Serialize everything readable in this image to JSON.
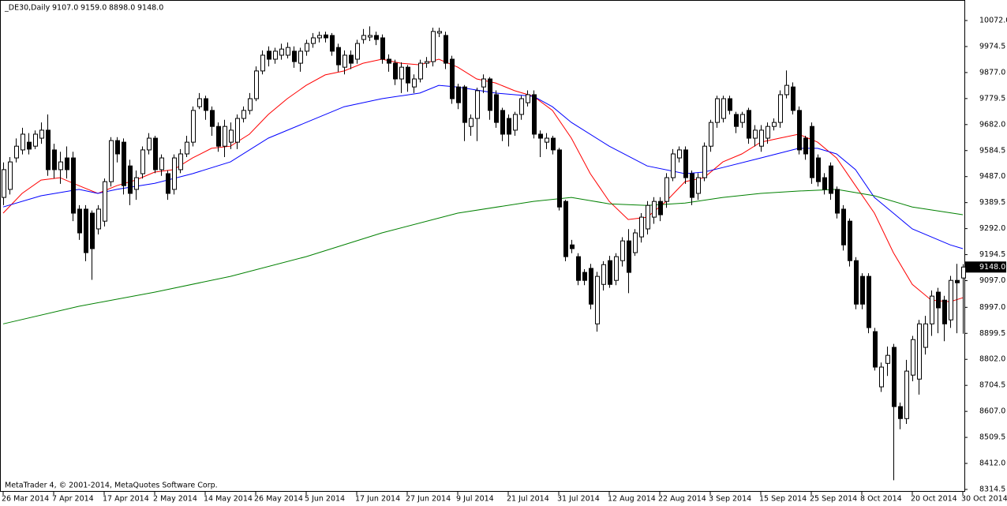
{
  "chart_data": {
    "type": "candlestick",
    "title": "_DE30,Daily",
    "last_labels": [
      "9107.0",
      "9159.0",
      "8898.0",
      "9148.0"
    ],
    "footer": "MetaTrader 4, © 2001-2014, MetaQuotes Software Corp.",
    "colors": {
      "up": "#ffffff",
      "down": "#000000",
      "wick": "#000000"
    },
    "xlim": [
      -0.5,
      152.25
    ],
    "ylim": [
      8308.6,
      10148.9
    ],
    "xticks": [
      {
        "value": 0,
        "label": "26 Mar 2014"
      },
      {
        "value": 8,
        "label": "7 Apr 2014"
      },
      {
        "value": 16,
        "label": "17 Apr 2014"
      },
      {
        "value": 24,
        "label": "2 May 2014"
      },
      {
        "value": 32,
        "label": "14 May 2014"
      },
      {
        "value": 40,
        "label": "26 May 2014"
      },
      {
        "value": 48,
        "label": "5 Jun 2014"
      },
      {
        "value": 56,
        "label": "17 Jun 2014"
      },
      {
        "value": 64,
        "label": "27 Jun 2014"
      },
      {
        "value": 72,
        "label": "9 Jul 2014"
      },
      {
        "value": 80,
        "label": "21 Jul 2014"
      },
      {
        "value": 88,
        "label": "31 Jul 2014"
      },
      {
        "value": 96,
        "label": "12 Aug 2014"
      },
      {
        "value": 104,
        "label": "22 Aug 2014"
      },
      {
        "value": 112,
        "label": "3 Sep 2014"
      },
      {
        "value": 120,
        "label": "15 Sep 2014"
      },
      {
        "value": 128,
        "label": "25 Sep 2014"
      },
      {
        "value": 136,
        "label": "8 Oct 2014"
      },
      {
        "value": 144,
        "label": "20 Oct 2014"
      },
      {
        "value": 152,
        "label": "30 Oct 2014"
      }
    ],
    "yticks": [
      {
        "value": 10072,
        "label": "10072.0"
      },
      {
        "value": 9974.5,
        "label": "9974.5"
      },
      {
        "value": 9877,
        "label": "9877.0"
      },
      {
        "value": 9779.5,
        "label": "9779.5"
      },
      {
        "value": 9682,
        "label": "9682.0"
      },
      {
        "value": 9584.5,
        "label": "9584.5"
      },
      {
        "value": 9487,
        "label": "9487.0"
      },
      {
        "value": 9389.5,
        "label": "9389.5"
      },
      {
        "value": 9292,
        "label": "9292.0"
      },
      {
        "value": 9194.5,
        "label": "9194.5"
      },
      {
        "value": 9097,
        "label": "9097.0"
      },
      {
        "value": 8997,
        "label": "8997.0"
      },
      {
        "value": 8899.5,
        "label": "8899.5"
      },
      {
        "value": 8802,
        "label": "8802.0"
      },
      {
        "value": 8704.5,
        "label": "8704.5"
      },
      {
        "value": 8607,
        "label": "8607.0"
      },
      {
        "value": 8509.5,
        "label": "8509.5"
      },
      {
        "value": 8412,
        "label": "8412.0"
      },
      {
        "value": 8314.5,
        "label": "8314.5"
      }
    ],
    "open": [
      9409,
      9439,
      9557,
      9587,
      9616,
      9601,
      9631,
      9661,
      9587,
      9513,
      9557,
      9557,
      9365,
      9365,
      9350,
      9291,
      9320,
      9468,
      9622,
      9616,
      9527,
      9439,
      9498,
      9587,
      9631,
      9513,
      9498,
      9439,
      9513,
      9572,
      9616,
      9749,
      9779,
      9735,
      9675,
      9601,
      9616,
      9616,
      9705,
      9735,
      9779,
      9883,
      9957,
      9927,
      9942,
      9942,
      9957,
      9912,
      9957,
      9986,
      10007,
      10018,
      10016,
      9971,
      9897,
      9942,
      9927,
      10001,
      10010,
      10016,
      10007,
      9927,
      9912,
      9853,
      9897,
      9823,
      9853,
      9912,
      9918,
      10025,
      10016,
      9927,
      9823,
      9823,
      9675,
      9705,
      9823,
      9853,
      9794,
      9735,
      9705,
      9661,
      9720,
      9764,
      9794,
      9646,
      9616,
      9631,
      9587,
      9394,
      9231,
      9187,
      9128,
      9143,
      8935,
      9083,
      9172,
      9098,
      9172,
      9246,
      9202,
      9261,
      9291,
      9335,
      9394,
      9394,
      9483,
      9557,
      9587,
      9498,
      9424,
      9483,
      9601,
      9690,
      9705,
      9779,
      9720,
      9690,
      9735,
      9631,
      9601,
      9631,
      9675,
      9690,
      9794,
      9823,
      9735,
      9631,
      9675,
      9557,
      9483,
      9527,
      9439,
      9365,
      9320,
      9172,
      9113,
      9113,
      8906,
      8699,
      8787,
      8847,
      8625,
      8580,
      8743,
      8728,
      8847,
      8935,
      9054,
      9024,
      8950,
      9098,
      9107
    ],
    "high": [
      9540,
      9560,
      9630,
      9670,
      9650,
      9660,
      9690,
      9720,
      9610,
      9580,
      9600,
      9580,
      9380,
      9380,
      9360,
      9380,
      9480,
      9635,
      9635,
      9630,
      9550,
      9510,
      9600,
      9650,
      9640,
      9570,
      9510,
      9570,
      9590,
      9640,
      9750,
      9800,
      9790,
      9750,
      9690,
      9700,
      9690,
      9720,
      9750,
      9800,
      9900,
      9960,
      9975,
      9970,
      9985,
      9990,
      9975,
      9970,
      10000,
      10025,
      10030,
      10030,
      10025,
      9985,
      9960,
      9960,
      10000,
      10040,
      10050,
      10030,
      10020,
      9945,
      9925,
      9915,
      9905,
      9870,
      9925,
      9935,
      10045,
      10045,
      10030,
      9940,
      9835,
      9830,
      9720,
      9820,
      9870,
      9860,
      9810,
      9745,
      9720,
      9730,
      9790,
      9810,
      9810,
      9660,
      9650,
      9640,
      9595,
      9400,
      9250,
      9200,
      9140,
      9160,
      9130,
      9170,
      9190,
      9200,
      9260,
      9290,
      9290,
      9350,
      9395,
      9410,
      9410,
      9500,
      9590,
      9600,
      9600,
      9510,
      9500,
      9615,
      9700,
      9790,
      9790,
      9790,
      9730,
      9730,
      9745,
      9680,
      9680,
      9690,
      9705,
      9810,
      9885,
      9840,
      9750,
      9640,
      9690,
      9570,
      9500,
      9540,
      9450,
      9380,
      9330,
      9185,
      9125,
      9125,
      8920,
      8790,
      8850,
      8860,
      8640,
      8800,
      8890,
      8950,
      8965,
      9060,
      9070,
      9040,
      9115,
      9160,
      9159
    ],
    "low": [
      9380,
      9420,
      9540,
      9570,
      9570,
      9590,
      9610,
      9490,
      9480,
      9460,
      9480,
      9320,
      9250,
      9170,
      9100,
      9270,
      9300,
      9450,
      9540,
      9420,
      9380,
      9400,
      9480,
      9570,
      9500,
      9490,
      9400,
      9420,
      9500,
      9560,
      9600,
      9740,
      9700,
      9640,
      9580,
      9560,
      9590,
      9590,
      9690,
      9720,
      9770,
      9870,
      9900,
      9910,
      9925,
      9930,
      9895,
      9880,
      9940,
      9970,
      9990,
      9990,
      9940,
      9880,
      9870,
      9890,
      9910,
      9985,
      9995,
      9980,
      9910,
      9880,
      9830,
      9800,
      9805,
      9800,
      9840,
      9895,
      9900,
      10010,
      9890,
      9760,
      9740,
      9620,
      9640,
      9620,
      9800,
      9700,
      9670,
      9620,
      9600,
      9640,
      9700,
      9750,
      9630,
      9560,
      9590,
      9570,
      9360,
      9170,
      9200,
      9080,
      9080,
      8990,
      8906,
      9060,
      9070,
      9080,
      9150,
      9050,
      9190,
      9240,
      9270,
      9310,
      9320,
      9370,
      9470,
      9540,
      9460,
      9380,
      9400,
      9470,
      9580,
      9670,
      9690,
      9720,
      9650,
      9670,
      9610,
      9600,
      9580,
      9610,
      9660,
      9670,
      9780,
      9720,
      9570,
      9550,
      9460,
      9450,
      9420,
      9400,
      9330,
      9210,
      9150,
      8990,
      8990,
      8900,
      8760,
      8680,
      8740,
      8349,
      8540,
      8560,
      8720,
      8670,
      8820,
      8890,
      8900,
      8870,
      8920,
      8900,
      8898
    ],
    "close": [
      9513,
      9542,
      9601,
      9646,
      9590,
      9646,
      9661,
      9513,
      9513,
      9542,
      9513,
      9350,
      9276,
      9202,
      9217,
      9365,
      9468,
      9622,
      9572,
      9453,
      9424,
      9483,
      9587,
      9631,
      9513,
      9557,
      9424,
      9557,
      9572,
      9616,
      9735,
      9779,
      9735,
      9675,
      9601,
      9675,
      9661,
      9705,
      9735,
      9779,
      9883,
      9942,
      9927,
      9957,
      9965,
      9971,
      9918,
      9957,
      9986,
      10007,
      10016,
      10007,
      9957,
      9906,
      9942,
      9912,
      9986,
      10016,
      10016,
      10001,
      9927,
      9912,
      9853,
      9897,
      9838,
      9853,
      9912,
      9918,
      10031,
      10031,
      9912,
      9779,
      9764,
      9690,
      9705,
      9809,
      9853,
      9735,
      9690,
      9646,
      9646,
      9720,
      9779,
      9794,
      9646,
      9631,
      9631,
      9587,
      9373,
      9187,
      9217,
      9098,
      9098,
      9009,
      9113,
      9157,
      9083,
      9187,
      9246,
      9128,
      9276,
      9335,
      9379,
      9394,
      9344,
      9483,
      9572,
      9587,
      9483,
      9409,
      9483,
      9601,
      9690,
      9779,
      9779,
      9735,
      9675,
      9720,
      9631,
      9661,
      9661,
      9675,
      9690,
      9794,
      9829,
      9735,
      9587,
      9572,
      9483,
      9468,
      9439,
      9424,
      9350,
      9231,
      9172,
      9009,
      9009,
      8921,
      8773,
      8773,
      8817,
      8625,
      8580,
      8758,
      8876,
      8935,
      8935,
      9039,
      8995,
      8935,
      9098,
      9089,
      9148
    ],
    "series": [
      {
        "color": "#ff0000",
        "x": [
          0,
          3,
          6,
          9,
          12,
          15,
          18,
          21,
          24,
          27,
          30,
          33,
          36,
          39,
          42,
          45,
          48,
          51,
          54,
          57,
          60,
          63,
          66,
          69,
          72,
          75,
          78,
          81,
          84,
          87,
          90,
          93,
          96,
          99,
          102,
          105,
          108,
          111,
          114,
          117,
          120,
          123,
          126,
          129,
          132,
          135,
          138,
          141,
          144,
          147,
          150,
          152
        ],
        "values": [
          9350,
          9424,
          9474,
          9483,
          9453,
          9424,
          9453,
          9474,
          9504,
          9513,
          9557,
          9593,
          9601,
          9646,
          9720,
          9779,
          9829,
          9868,
          9883,
          9912,
          9927,
          9912,
          9906,
          9927,
          9897,
          9853,
          9838,
          9809,
          9788,
          9735,
          9631,
          9498,
          9394,
          9326,
          9335,
          9394,
          9468,
          9483,
          9542,
          9572,
          9616,
          9631,
          9646,
          9616,
          9557,
          9453,
          9350,
          9202,
          9083,
          9024,
          9018,
          9033
        ]
      },
      {
        "color": "#0000ff",
        "x": [
          0,
          6,
          12,
          15,
          18,
          24,
          30,
          36,
          42,
          48,
          54,
          60,
          66,
          69,
          72,
          78,
          84,
          87,
          90,
          96,
          102,
          108,
          111,
          114,
          120,
          126,
          129,
          132,
          135,
          138,
          141,
          144,
          147,
          150,
          152
        ],
        "values": [
          9373,
          9415,
          9439,
          9424,
          9439,
          9462,
          9498,
          9542,
          9631,
          9690,
          9749,
          9779,
          9800,
          9829,
          9823,
          9800,
          9788,
          9749,
          9690,
          9601,
          9527,
          9498,
          9504,
          9521,
          9557,
          9593,
          9593,
          9572,
          9513,
          9409,
          9350,
          9291,
          9261,
          9231,
          9217
        ]
      },
      {
        "color": "#008000",
        "x": [
          0,
          12,
          24,
          36,
          48,
          60,
          72,
          84,
          90,
          96,
          102,
          108,
          114,
          120,
          126,
          132,
          138,
          144,
          152
        ],
        "values": [
          8935,
          9001,
          9054,
          9113,
          9187,
          9276,
          9350,
          9394,
          9409,
          9385,
          9379,
          9388,
          9409,
          9424,
          9433,
          9439,
          9415,
          9373,
          9344
        ]
      }
    ]
  }
}
